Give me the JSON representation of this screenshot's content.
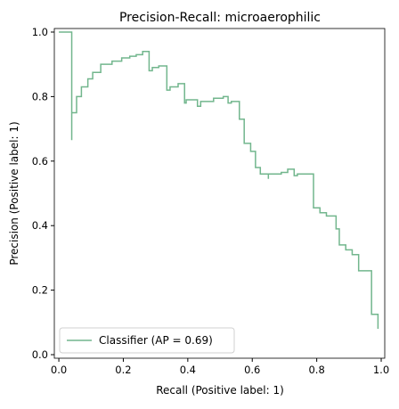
{
  "chart_data": {
    "type": "line",
    "title": "Precision-Recall: microaerophilic",
    "xlabel": "Recall (Positive label: 1)",
    "ylabel": "Precision (Positive label: 1)",
    "xlim": [
      -0.014,
      1.011
    ],
    "ylim": [
      -0.011,
      1.011
    ],
    "xticks": [
      {
        "value": 0,
        "label": "0.0"
      },
      0.2,
      0.4,
      0.6,
      0.8,
      {
        "value": 1,
        "label": "1.0"
      }
    ],
    "yticks": [
      {
        "value": 0,
        "label": "0.0"
      },
      0.2,
      0.4,
      0.6,
      0.8,
      {
        "value": 1,
        "label": "1.0"
      }
    ],
    "legend": "lower left",
    "series": [
      {
        "name": "Classifier (AP = 0.69)",
        "color": "#72b68d",
        "x": [
          0,
          0.04,
          0.04,
          0.04,
          0.055,
          0.055,
          0.07,
          0.07,
          0.09,
          0.09,
          0.105,
          0.105,
          0.13,
          0.13,
          0.165,
          0.165,
          0.195,
          0.195,
          0.22,
          0.22,
          0.24,
          0.24,
          0.26,
          0.26,
          0.28,
          0.28,
          0.29,
          0.29,
          0.31,
          0.31,
          0.335,
          0.335,
          0.345,
          0.345,
          0.37,
          0.37,
          0.39,
          0.39,
          0.395,
          0.395,
          0.43,
          0.43,
          0.44,
          0.44,
          0.48,
          0.48,
          0.51,
          0.51,
          0.525,
          0.525,
          0.535,
          0.535,
          0.56,
          0.56,
          0.575,
          0.575,
          0.595,
          0.595,
          0.61,
          0.61,
          0.625,
          0.625,
          0.65,
          0.65,
          0.65,
          0.69,
          0.69,
          0.71,
          0.71,
          0.73,
          0.73,
          0.74,
          0.74,
          0.79,
          0.79,
          0.81,
          0.81,
          0.83,
          0.83,
          0.86,
          0.86,
          0.87,
          0.87,
          0.89,
          0.89,
          0.91,
          0.91,
          0.93,
          0.93,
          0.97,
          0.97,
          0.99,
          0.99
        ],
        "values": [
          1,
          1,
          0.665,
          0.75,
          0.75,
          0.8,
          0.8,
          0.83,
          0.83,
          0.855,
          0.855,
          0.875,
          0.875,
          0.9,
          0.9,
          0.91,
          0.91,
          0.92,
          0.92,
          0.925,
          0.925,
          0.93,
          0.93,
          0.94,
          0.94,
          0.88,
          0.88,
          0.89,
          0.89,
          0.895,
          0.895,
          0.82,
          0.82,
          0.83,
          0.83,
          0.84,
          0.84,
          0.78,
          0.78,
          0.79,
          0.79,
          0.77,
          0.77,
          0.785,
          0.785,
          0.795,
          0.795,
          0.8,
          0.8,
          0.78,
          0.78,
          0.785,
          0.785,
          0.73,
          0.73,
          0.655,
          0.655,
          0.63,
          0.63,
          0.58,
          0.58,
          0.56,
          0.56,
          0.545,
          0.56,
          0.56,
          0.565,
          0.565,
          0.575,
          0.575,
          0.555,
          0.555,
          0.56,
          0.56,
          0.455,
          0.455,
          0.44,
          0.44,
          0.43,
          0.43,
          0.39,
          0.39,
          0.34,
          0.34,
          0.325,
          0.325,
          0.31,
          0.31,
          0.26,
          0.26,
          0.125,
          0.125,
          0.08
        ]
      }
    ]
  }
}
